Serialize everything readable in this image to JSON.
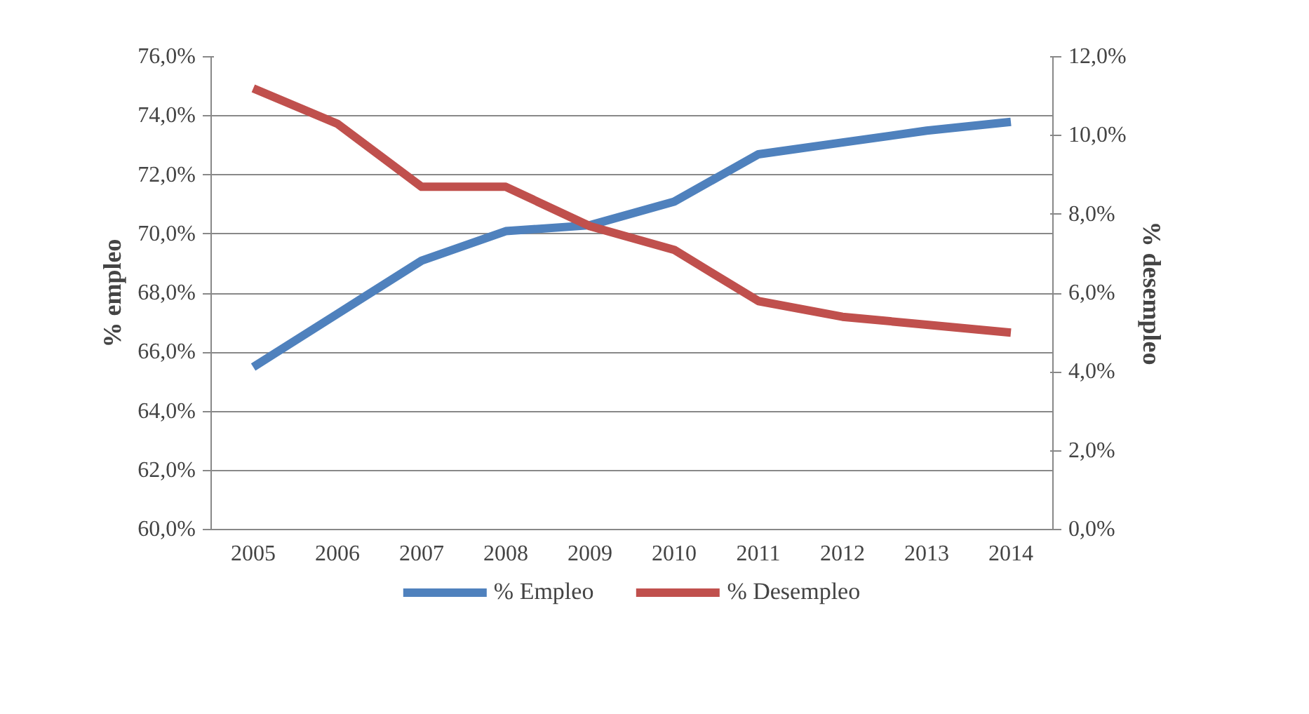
{
  "chart_data": {
    "type": "line",
    "ylabel": "% empleo",
    "y2label": "% desempleo",
    "categories": [
      "2005",
      "2006",
      "2007",
      "2008",
      "2009",
      "2010",
      "2011",
      "2012",
      "2013",
      "2014"
    ],
    "series": [
      {
        "name": "% Empleo",
        "color": "#4f81bd",
        "values": [
          65.5,
          67.3,
          69.1,
          70.1,
          70.3,
          71.1,
          72.7,
          73.1,
          73.5,
          73.8
        ]
      },
      {
        "name": "% Desempleo",
        "color": "#c0504d",
        "axis": "y2",
        "values": [
          11.2,
          10.3,
          8.7,
          8.7,
          7.7,
          7.1,
          5.8,
          5.4,
          5.2,
          5.0
        ]
      }
    ],
    "ylim": [
      60,
      76
    ],
    "yticks": [
      {
        "value": 60,
        "label": "60,0%"
      },
      {
        "value": 62,
        "label": "62,0%"
      },
      {
        "value": 64,
        "label": "64,0%"
      },
      {
        "value": 66,
        "label": "66,0%"
      },
      {
        "value": 68,
        "label": "68,0%"
      },
      {
        "value": 70,
        "label": "70,0%"
      },
      {
        "value": 72,
        "label": "72,0%"
      },
      {
        "value": 74,
        "label": "74,0%"
      },
      {
        "value": 76,
        "label": "76,0%"
      }
    ],
    "y2lim": [
      0,
      12
    ],
    "y2ticks": [
      {
        "value": 0,
        "label": "0,0%"
      },
      {
        "value": 2,
        "label": "2,0%"
      },
      {
        "value": 4,
        "label": "4,0%"
      },
      {
        "value": 6,
        "label": "6,0%"
      },
      {
        "value": 8,
        "label": "8,0%"
      },
      {
        "value": 10,
        "label": "10,0%"
      },
      {
        "value": 12,
        "label": "12,0%"
      }
    ],
    "grid": "y",
    "legend": "bottom",
    "marker": "none",
    "line_style": "solid"
  }
}
